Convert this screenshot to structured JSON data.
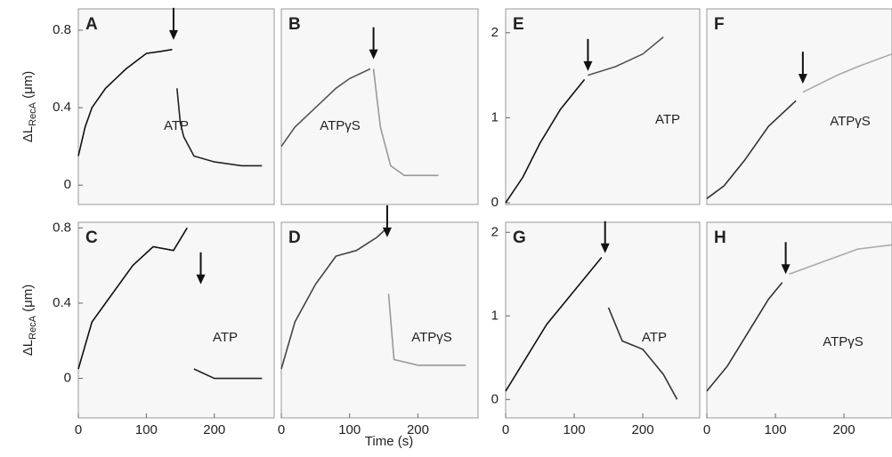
{
  "xlabel": "Time (s)",
  "chart_data": [
    {
      "type": "line",
      "letter": "A",
      "annotation": "ATP",
      "ylabel": [
        "ΔL",
        "RecA",
        " (μm)"
      ],
      "xlim": [
        0,
        288
      ],
      "ylim": [
        -0.1,
        0.91
      ],
      "yticks": [
        0,
        0.4,
        0.8
      ],
      "arrow_x": 140,
      "arrow_y": 0.75,
      "series": [
        {
          "color": "#111",
          "x": [
            0,
            10,
            20,
            40,
            70,
            100,
            120,
            138
          ],
          "values": [
            0.15,
            0.3,
            0.4,
            0.5,
            0.6,
            0.68,
            0.69,
            0.7
          ]
        },
        {
          "color": "#222",
          "x": [
            145,
            150,
            155,
            170,
            200,
            240,
            270
          ],
          "values": [
            0.5,
            0.32,
            0.25,
            0.15,
            0.12,
            0.1,
            0.1
          ]
        }
      ]
    },
    {
      "type": "line",
      "letter": "B",
      "annotation": "ATPγS",
      "xlim": [
        0,
        288
      ],
      "ylim": [
        -0.1,
        0.91
      ],
      "arrow_x": 135,
      "arrow_y": 0.65,
      "series": [
        {
          "color": "#555",
          "x": [
            0,
            20,
            50,
            80,
            100,
            130
          ],
          "values": [
            0.2,
            0.3,
            0.4,
            0.5,
            0.55,
            0.6
          ]
        },
        {
          "color": "#999",
          "x": [
            135,
            140,
            145,
            160,
            180,
            230
          ],
          "values": [
            0.6,
            0.45,
            0.3,
            0.1,
            0.05,
            0.05
          ]
        }
      ]
    },
    {
      "type": "line",
      "letter": "C",
      "annotation": "ATP",
      "ylabel": [
        "ΔL",
        "RecA",
        " (μm)"
      ],
      "xlim": [
        0,
        288
      ],
      "ylim": [
        -0.21,
        0.83
      ],
      "xticks": [
        0,
        100,
        200
      ],
      "yticks": [
        0,
        0.4,
        0.8
      ],
      "arrow_x": 180,
      "arrow_y": 0.5,
      "series": [
        {
          "color": "#111",
          "x": [
            0,
            20,
            50,
            80,
            110,
            140,
            160
          ],
          "values": [
            0.05,
            0.3,
            0.45,
            0.6,
            0.7,
            0.68,
            0.8
          ]
        },
        {
          "color": "#222",
          "x": [
            170,
            200,
            270
          ],
          "values": [
            0.05,
            0.0,
            0.0
          ]
        }
      ]
    },
    {
      "type": "line",
      "letter": "D",
      "annotation": "ATPγS",
      "xlim": [
        0,
        288
      ],
      "ylim": [
        -0.21,
        0.83
      ],
      "xticks": [
        0,
        100,
        200
      ],
      "arrow_x": 155,
      "arrow_y": 0.75,
      "series": [
        {
          "color": "#444",
          "x": [
            0,
            20,
            50,
            80,
            110,
            140,
            155
          ],
          "values": [
            0.05,
            0.3,
            0.5,
            0.65,
            0.68,
            0.75,
            0.8
          ]
        },
        {
          "color": "#999",
          "x": [
            157,
            165,
            200,
            270
          ],
          "values": [
            0.45,
            0.1,
            0.07,
            0.07
          ]
        }
      ]
    },
    {
      "type": "line",
      "letter": "E",
      "annotation": "ATP",
      "xlim": [
        0,
        283
      ],
      "ylim": [
        -0.02,
        2.28
      ],
      "yticks": [
        0,
        1,
        2
      ],
      "arrow_x": 120,
      "arrow_y": 1.55,
      "series": [
        {
          "color": "#111",
          "x": [
            0,
            25,
            50,
            80,
            115
          ],
          "values": [
            0,
            0.3,
            0.7,
            1.1,
            1.45
          ]
        },
        {
          "color": "#555",
          "x": [
            120,
            160,
            200,
            230
          ],
          "values": [
            1.5,
            1.6,
            1.75,
            1.95
          ]
        }
      ]
    },
    {
      "type": "line",
      "letter": "F",
      "annotation": "ATPγS",
      "xlim": [
        0,
        270
      ],
      "ylim": [
        -0.02,
        2.28
      ],
      "arrow_x": 140,
      "arrow_y": 1.4,
      "series": [
        {
          "color": "#333",
          "x": [
            0,
            25,
            55,
            90,
            130
          ],
          "values": [
            0.05,
            0.2,
            0.5,
            0.9,
            1.2
          ]
        },
        {
          "color": "#aaa",
          "x": [
            140,
            190,
            220,
            270
          ],
          "values": [
            1.3,
            1.5,
            1.6,
            1.75
          ]
        }
      ]
    },
    {
      "type": "line",
      "letter": "G",
      "annotation": "ATP",
      "xlim": [
        0,
        283
      ],
      "ylim": [
        -0.22,
        2.12
      ],
      "xticks": [
        0,
        100,
        200
      ],
      "yticks": [
        0,
        1,
        2
      ],
      "arrow_x": 145,
      "arrow_y": 1.75,
      "series": [
        {
          "color": "#111",
          "x": [
            0,
            30,
            60,
            100,
            140
          ],
          "values": [
            0.1,
            0.5,
            0.9,
            1.3,
            1.7
          ]
        },
        {
          "color": "#333",
          "x": [
            150,
            170,
            200,
            230,
            250
          ],
          "values": [
            1.1,
            0.7,
            0.6,
            0.3,
            0.0
          ]
        }
      ]
    },
    {
      "type": "line",
      "letter": "H",
      "annotation": "ATPγS",
      "xlim": [
        0,
        270
      ],
      "ylim": [
        -0.22,
        2.12
      ],
      "xticks": [
        0,
        100,
        200
      ],
      "arrow_x": 115,
      "arrow_y": 1.5,
      "series": [
        {
          "color": "#333",
          "x": [
            0,
            30,
            60,
            90,
            110
          ],
          "values": [
            0.1,
            0.4,
            0.8,
            1.2,
            1.4
          ]
        },
        {
          "color": "#aaa",
          "x": [
            120,
            170,
            220,
            270
          ],
          "values": [
            1.5,
            1.65,
            1.8,
            1.85
          ]
        }
      ]
    }
  ]
}
